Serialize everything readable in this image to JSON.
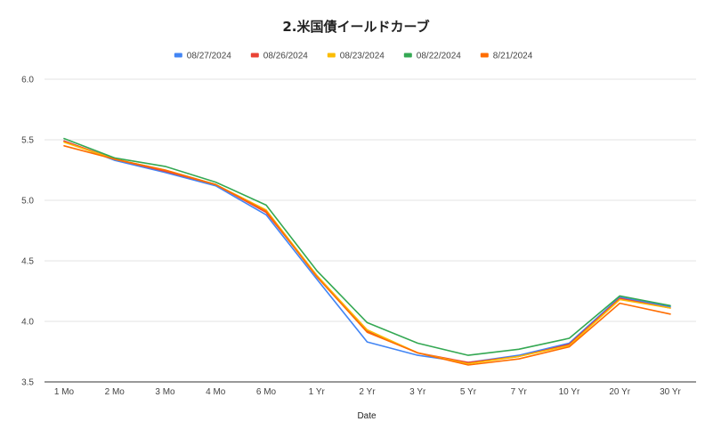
{
  "chart_data": {
    "type": "line",
    "title": "2.米国債イールドカーブ",
    "xlabel": "Date",
    "ylabel": "",
    "ylim": [
      3.5,
      6.0
    ],
    "yticks": [
      "3.5",
      "4.0",
      "4.5",
      "5.0",
      "5.5",
      "6.0"
    ],
    "grid": true,
    "legend_position": "top",
    "categories": [
      "1 Mo",
      "2 Mo",
      "3 Mo",
      "4 Mo",
      "6 Mo",
      "1 Yr",
      "2 Yr",
      "3 Yr",
      "5 Yr",
      "7 Yr",
      "10 Yr",
      "20 Yr",
      "30 Yr"
    ],
    "series": [
      {
        "name": "08/27/2024",
        "color": "#4285f4",
        "values": [
          5.49,
          5.33,
          5.23,
          5.12,
          4.88,
          4.35,
          3.83,
          3.72,
          3.66,
          3.72,
          3.82,
          4.2,
          4.12
        ]
      },
      {
        "name": "08/26/2024",
        "color": "#ea4335",
        "values": [
          5.49,
          5.34,
          5.24,
          5.13,
          4.9,
          4.38,
          3.92,
          3.74,
          3.66,
          3.71,
          3.81,
          4.19,
          4.11
        ]
      },
      {
        "name": "08/23/2024",
        "color": "#fbbc04",
        "values": [
          5.48,
          5.34,
          5.25,
          5.13,
          4.92,
          4.38,
          3.93,
          3.74,
          3.65,
          3.71,
          3.8,
          4.18,
          4.11
        ]
      },
      {
        "name": "08/22/2024",
        "color": "#34a853",
        "values": [
          5.51,
          5.35,
          5.28,
          5.15,
          4.96,
          4.42,
          3.99,
          3.82,
          3.72,
          3.77,
          3.86,
          4.21,
          4.13
        ]
      },
      {
        "name": "8/21/2024",
        "color": "#ff6d01",
        "values": [
          5.45,
          5.34,
          5.25,
          5.13,
          4.91,
          4.37,
          3.91,
          3.74,
          3.64,
          3.69,
          3.79,
          4.15,
          4.06
        ]
      }
    ]
  }
}
